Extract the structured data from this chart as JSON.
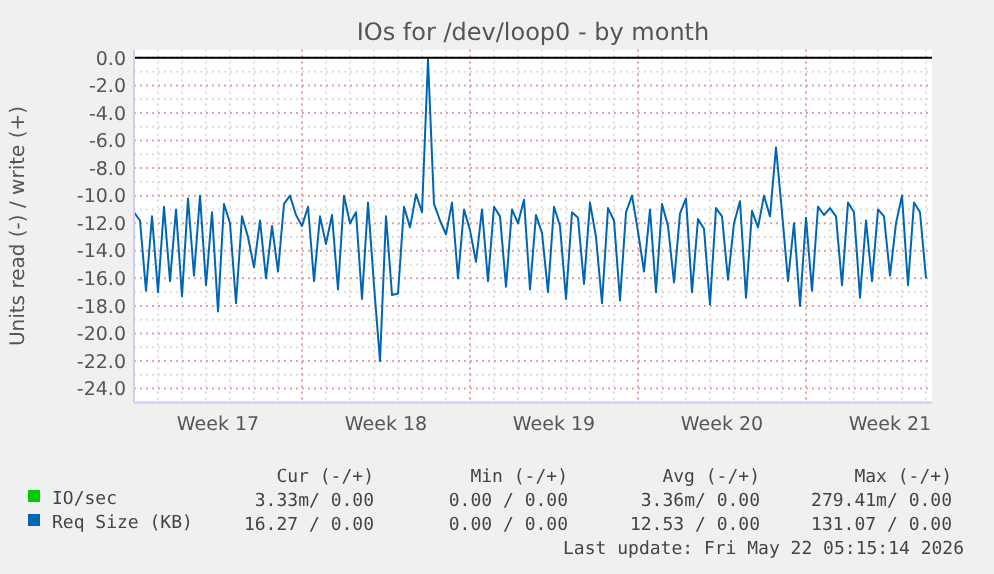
{
  "chart_data": {
    "type": "line",
    "title": "IOs for /dev/loop0 - by month",
    "ylabel": "Units read (-) / write (+)",
    "x": [
      "2026-04-19T00:00",
      "2026-04-19T06:00",
      "2026-04-19T12:00",
      "2026-04-19T18:00",
      "2026-04-20T00:00",
      "2026-04-20T06:00",
      "2026-04-20T12:00",
      "2026-04-20T18:00",
      "2026-04-21T00:00",
      "2026-04-21T06:00",
      "2026-04-21T12:00",
      "2026-04-21T18:00",
      "2026-04-22T00:00",
      "2026-04-22T06:00",
      "2026-04-22T12:00",
      "2026-04-22T18:00",
      "2026-04-23T00:00",
      "2026-04-23T06:00",
      "2026-04-23T12:00",
      "2026-04-23T18:00",
      "2026-04-24T00:00",
      "2026-04-24T06:00",
      "2026-04-24T12:00",
      "2026-04-24T18:00",
      "2026-04-25T00:00",
      "2026-04-25T06:00",
      "2026-04-25T12:00",
      "2026-04-25T18:00",
      "2026-04-26T00:00",
      "2026-04-26T06:00",
      "2026-04-26T12:00",
      "2026-04-26T18:00",
      "2026-04-27T00:00",
      "2026-04-27T06:00",
      "2026-04-27T12:00",
      "2026-04-27T18:00",
      "2026-04-28T00:00",
      "2026-04-28T06:00",
      "2026-04-28T12:00",
      "2026-04-28T18:00",
      "2026-04-29T00:00",
      "2026-04-29T06:00",
      "2026-04-29T12:00",
      "2026-04-29T18:00",
      "2026-04-30T00:00",
      "2026-04-30T06:00",
      "2026-04-30T12:00",
      "2026-04-30T18:00",
      "2026-05-01T00:00",
      "2026-05-01T06:00",
      "2026-05-01T12:00",
      "2026-05-01T18:00",
      "2026-05-02T00:00",
      "2026-05-02T06:00",
      "2026-05-02T12:00",
      "2026-05-02T18:00",
      "2026-05-03T00:00",
      "2026-05-03T06:00",
      "2026-05-03T12:00",
      "2026-05-03T18:00",
      "2026-05-04T00:00",
      "2026-05-04T06:00",
      "2026-05-04T12:00",
      "2026-05-04T18:00",
      "2026-05-05T00:00",
      "2026-05-05T06:00",
      "2026-05-05T12:00",
      "2026-05-05T18:00",
      "2026-05-06T00:00",
      "2026-05-06T06:00",
      "2026-05-06T12:00",
      "2026-05-06T18:00",
      "2026-05-07T00:00",
      "2026-05-07T06:00",
      "2026-05-07T12:00",
      "2026-05-07T18:00",
      "2026-05-08T00:00",
      "2026-05-08T06:00",
      "2026-05-08T12:00",
      "2026-05-08T18:00",
      "2026-05-09T00:00",
      "2026-05-09T06:00",
      "2026-05-09T12:00",
      "2026-05-09T18:00",
      "2026-05-10T00:00",
      "2026-05-10T06:00",
      "2026-05-10T12:00",
      "2026-05-10T18:00",
      "2026-05-11T00:00",
      "2026-05-11T06:00",
      "2026-05-11T12:00",
      "2026-05-11T18:00",
      "2026-05-12T00:00",
      "2026-05-12T06:00",
      "2026-05-12T12:00",
      "2026-05-12T18:00",
      "2026-05-13T00:00",
      "2026-05-13T06:00",
      "2026-05-13T12:00",
      "2026-05-13T18:00",
      "2026-05-14T00:00",
      "2026-05-14T06:00",
      "2026-05-14T12:00",
      "2026-05-14T18:00",
      "2026-05-15T00:00",
      "2026-05-15T06:00",
      "2026-05-15T12:00",
      "2026-05-15T18:00",
      "2026-05-16T00:00",
      "2026-05-16T06:00",
      "2026-05-16T12:00",
      "2026-05-16T18:00",
      "2026-05-17T00:00",
      "2026-05-17T06:00",
      "2026-05-17T12:00",
      "2026-05-17T18:00",
      "2026-05-18T00:00",
      "2026-05-18T06:00",
      "2026-05-18T12:00",
      "2026-05-18T18:00",
      "2026-05-19T00:00",
      "2026-05-19T06:00",
      "2026-05-19T12:00",
      "2026-05-19T18:00",
      "2026-05-20T00:00",
      "2026-05-20T06:00",
      "2026-05-20T12:00",
      "2026-05-20T18:00",
      "2026-05-21T00:00",
      "2026-05-21T06:00",
      "2026-05-21T12:00",
      "2026-05-21T18:00",
      "2026-05-22T00:00"
    ],
    "series": [
      {
        "name": "IO/sec",
        "color": "#00cc00",
        "values": [
          null,
          null,
          null,
          null,
          null,
          null,
          null,
          null,
          null,
          null,
          null,
          null,
          null,
          null,
          null,
          null,
          null,
          null,
          null,
          null,
          null,
          null,
          null,
          null,
          null,
          null,
          null,
          null,
          null,
          null,
          null,
          null,
          null,
          null,
          null,
          null,
          null,
          null,
          null,
          null,
          null,
          null,
          null,
          null,
          null,
          null,
          null,
          null,
          null,
          null,
          null,
          null,
          null,
          null,
          null,
          null,
          null,
          null,
          null,
          null,
          null,
          null,
          null,
          null,
          null,
          null,
          null,
          null,
          null,
          null,
          null,
          null,
          null,
          null,
          null,
          null,
          null,
          null,
          null,
          null,
          null,
          null,
          null,
          null,
          null,
          null,
          null,
          null,
          null,
          null,
          null,
          null,
          null,
          null,
          null,
          null,
          null,
          null,
          null,
          null,
          null,
          null,
          null,
          null,
          null,
          null,
          null,
          null,
          null,
          null,
          null,
          null,
          null,
          null,
          null,
          null,
          null,
          null,
          null,
          null,
          null,
          null,
          null,
          null,
          null,
          null,
          null,
          null,
          null,
          null,
          null,
          null,
          null
        ]
      },
      {
        "name": "Req Size (KB)",
        "color": "#0066b3",
        "values": [
          -11.2,
          -11.8,
          -16.9,
          -11.5,
          -17.0,
          -10.8,
          -16.2,
          -11.0,
          -17.3,
          -10.2,
          -15.8,
          -10.0,
          -16.5,
          -11.2,
          -18.4,
          -10.6,
          -12.0,
          -17.8,
          -11.5,
          -13.0,
          -15.2,
          -11.8,
          -16.0,
          -12.2,
          -15.5,
          -10.6,
          -10.0,
          -11.4,
          -12.2,
          -10.8,
          -16.2,
          -11.5,
          -13.5,
          -11.4,
          -16.8,
          -10.0,
          -12.0,
          -11.2,
          -17.5,
          -10.5,
          -16.5,
          -22.0,
          -11.5,
          -17.2,
          -17.1,
          -10.8,
          -12.3,
          -9.9,
          -11.2,
          -0.1,
          -10.6,
          -11.8,
          -12.8,
          -10.5,
          -16.0,
          -11.0,
          -12.5,
          -14.8,
          -11.0,
          -16.2,
          -10.8,
          -11.5,
          -16.6,
          -11.0,
          -12.0,
          -10.3,
          -16.8,
          -11.4,
          -12.7,
          -17.0,
          -10.8,
          -12.2,
          -17.5,
          -11.2,
          -11.6,
          -16.4,
          -10.5,
          -13.0,
          -17.8,
          -10.9,
          -11.8,
          -17.6,
          -11.2,
          -10.0,
          -12.6,
          -15.5,
          -11.0,
          -17.0,
          -10.6,
          -12.2,
          -16.3,
          -11.3,
          -10.2,
          -17.0,
          -11.7,
          -12.4,
          -17.9,
          -10.9,
          -11.5,
          -16.1,
          -12.0,
          -10.4,
          -17.4,
          -11.1,
          -12.3,
          -10.0,
          -11.5,
          -6.5,
          -11.2,
          -16.2,
          -12.0,
          -18.0,
          -11.6,
          -16.9,
          -10.8,
          -11.4,
          -10.9,
          -11.5,
          -16.5,
          -10.5,
          -11.2,
          -17.4,
          -11.8,
          -16.2,
          -11.0,
          -11.5,
          -15.8,
          -12.0,
          -10.0,
          -16.5,
          -10.5,
          -11.2,
          -16.0
        ]
      }
    ],
    "xlim": [
      "2026-04-19T00:00",
      "2026-05-22T06:00"
    ],
    "xticks": [
      {
        "value": "2026-04-22T12:00",
        "label": "Week 17"
      },
      {
        "value": "2026-04-26T00:00",
        "label": null
      },
      {
        "value": "2026-04-29T12:00",
        "label": "Week 18"
      },
      {
        "value": "2026-05-03T00:00",
        "label": null
      },
      {
        "value": "2026-05-06T12:00",
        "label": "Week 19"
      },
      {
        "value": "2026-05-10T00:00",
        "label": null
      },
      {
        "value": "2026-05-13T12:00",
        "label": "Week 20"
      },
      {
        "value": "2026-05-17T00:00",
        "label": null
      },
      {
        "value": "2026-05-20T12:00",
        "label": "Week 21"
      }
    ],
    "ylim": [
      -25,
      0.6
    ],
    "yticks": [
      {
        "value": 0,
        "label": "0.0"
      },
      {
        "value": -2,
        "label": "-2.0"
      },
      {
        "value": -4,
        "label": "-4.0"
      },
      {
        "value": -6,
        "label": "-6.0"
      },
      {
        "value": -8,
        "label": "-8.0"
      },
      {
        "value": -10,
        "label": "-10.0"
      },
      {
        "value": -12,
        "label": "-12.0"
      },
      {
        "value": -14,
        "label": "-14.0"
      },
      {
        "value": -16,
        "label": "-16.0"
      },
      {
        "value": -18,
        "label": "-18.0"
      },
      {
        "value": -20,
        "label": "-20.0"
      },
      {
        "value": -22,
        "label": "-22.0"
      },
      {
        "value": -24,
        "label": "-24.0"
      }
    ],
    "grid": true,
    "legend": "bottom",
    "annotations": [
      "Cur (-/+)",
      "Min (-/+)",
      "Avg (-/+)",
      "Max (-/+)",
      "3.33m/ 0.00",
      "0.00 / 0.00",
      "3.36m/ 0.00",
      "279.41m/ 0.00",
      "16.27 / 0.00",
      "0.00 / 0.00",
      "12.53 / 0.00",
      "131.07 / 0.00",
      "Last update: Fri May 22 05:15:14 2026"
    ]
  }
}
